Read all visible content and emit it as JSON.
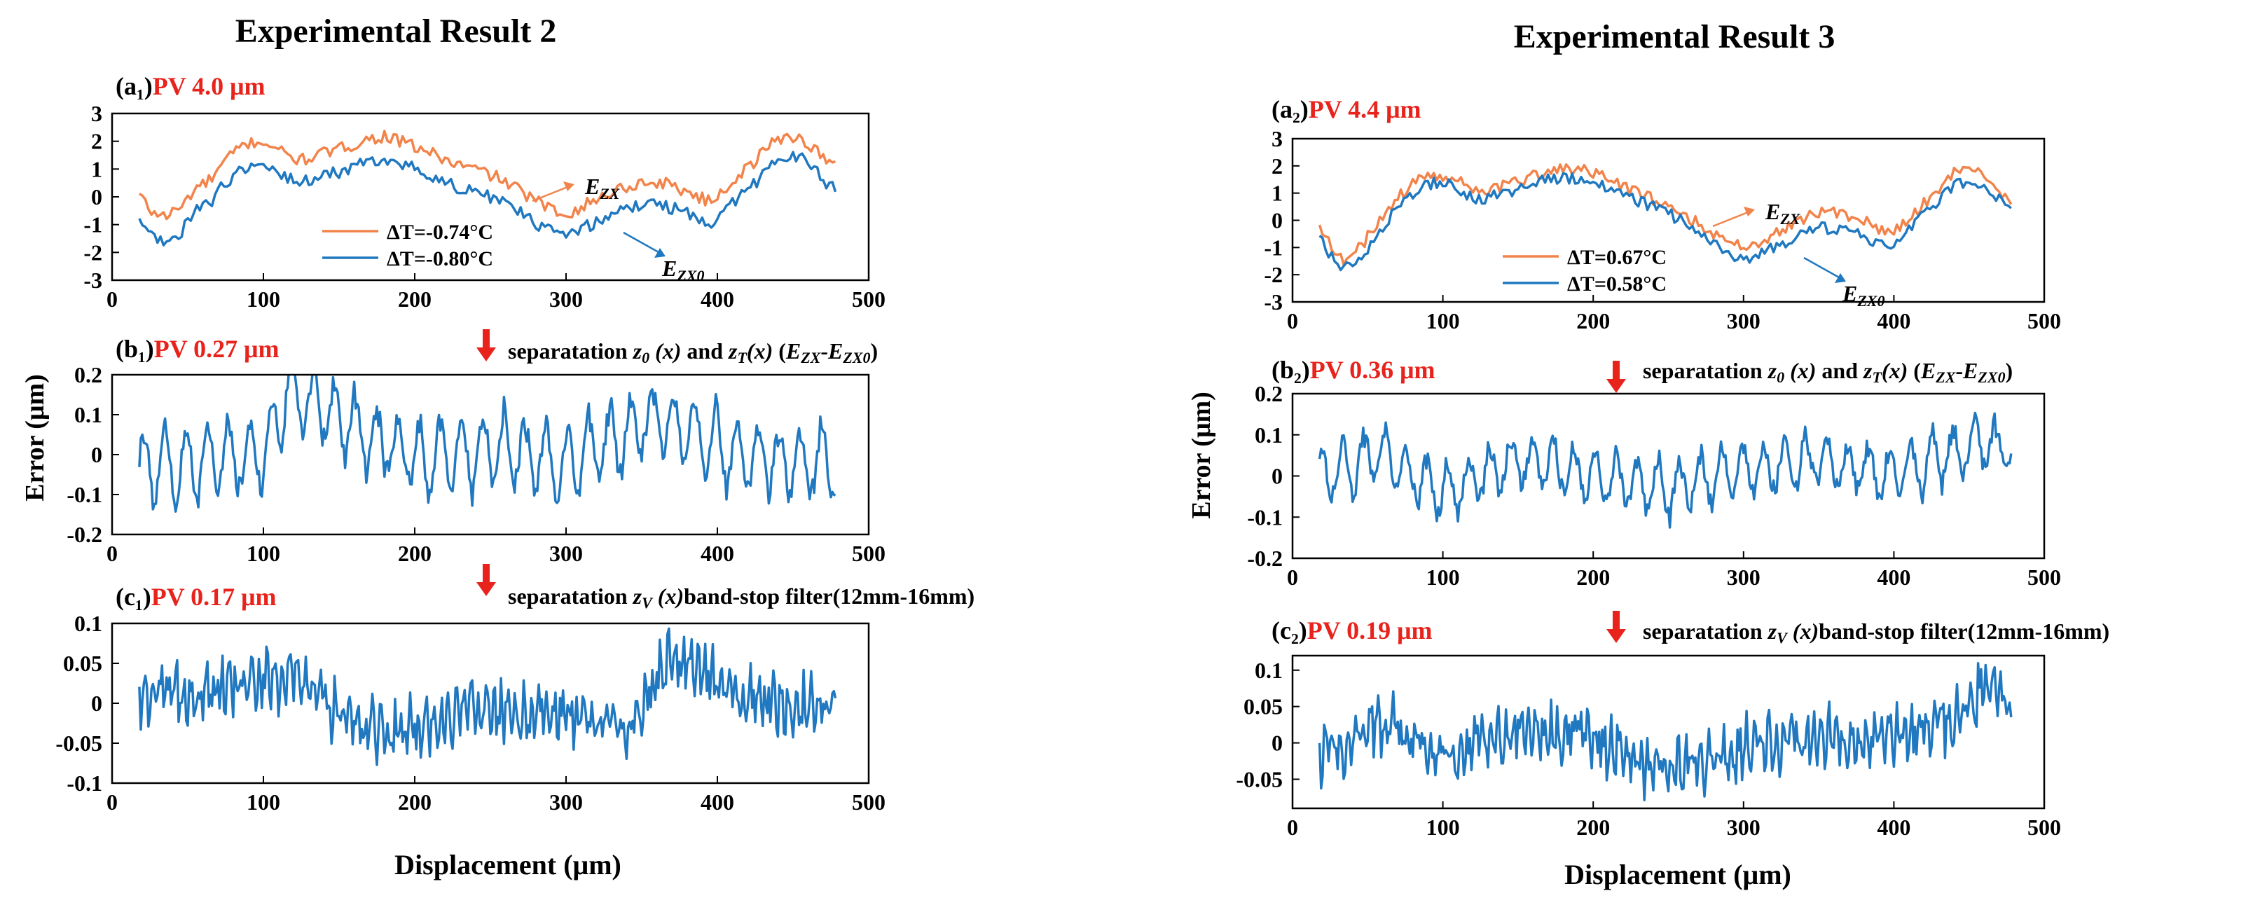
{
  "colors": {
    "orange": "#F2844B",
    "blue": "#1F78C0",
    "red": "#E8231C",
    "black": "#000000"
  },
  "labels": {
    "title_left": "Experimental Result 2",
    "title_right": "Experimental Result 3",
    "ylabel_error": "Error (μm)",
    "xlabel": "Displacement (μm)",
    "sep1_text": "separatation z₀ (x) and z_T(x) (E_ZX-E_ZX0)",
    "sep2_text": "separatation z_V (x)band-stop filter(12mm-16mm)"
  },
  "chart_data": [
    {
      "id": "a1",
      "type": "line",
      "panel_label": "(a₁)",
      "pv_text": "PV 4.0 μm",
      "xlim": [
        0,
        500
      ],
      "ylim": [
        -3,
        3
      ],
      "xticks": [
        0,
        100,
        200,
        300,
        400,
        500
      ],
      "yticks": [
        -3,
        -2,
        -1,
        0,
        1,
        2,
        3
      ],
      "x_range": [
        18,
        478
      ],
      "annotations": [
        "E_ZX",
        "E_ZX0"
      ],
      "series": [
        {
          "name": "ΔT=-0.74°C",
          "label": "E_ZX",
          "color": "orange",
          "points": [
            [
              18,
              0.1
            ],
            [
              25,
              -0.5
            ],
            [
              35,
              -0.7
            ],
            [
              45,
              -0.4
            ],
            [
              55,
              0.3
            ],
            [
              65,
              0.6
            ],
            [
              75,
              1.3
            ],
            [
              85,
              1.8
            ],
            [
              95,
              2.0
            ],
            [
              105,
              1.9
            ],
            [
              115,
              1.5
            ],
            [
              125,
              1.3
            ],
            [
              135,
              1.5
            ],
            [
              150,
              1.7
            ],
            [
              165,
              2.0
            ],
            [
              180,
              2.2
            ],
            [
              195,
              1.9
            ],
            [
              210,
              1.6
            ],
            [
              225,
              1.2
            ],
            [
              240,
              1.0
            ],
            [
              255,
              0.7
            ],
            [
              270,
              0.2
            ],
            [
              285,
              -0.3
            ],
            [
              295,
              -0.6
            ],
            [
              305,
              -0.5
            ],
            [
              320,
              -0.1
            ],
            [
              335,
              0.3
            ],
            [
              350,
              0.5
            ],
            [
              365,
              0.5
            ],
            [
              380,
              0.2
            ],
            [
              395,
              -0.2
            ],
            [
              405,
              0.3
            ],
            [
              415,
              0.8
            ],
            [
              425,
              1.3
            ],
            [
              435,
              1.9
            ],
            [
              445,
              2.2
            ],
            [
              455,
              2.1
            ],
            [
              465,
              1.7
            ],
            [
              472,
              1.3
            ],
            [
              478,
              1.1
            ]
          ]
        },
        {
          "name": "ΔT=-0.80°C",
          "label": "E_ZX0",
          "color": "blue",
          "points": [
            [
              18,
              -0.8
            ],
            [
              25,
              -1.4
            ],
            [
              35,
              -1.7
            ],
            [
              45,
              -1.3
            ],
            [
              55,
              -0.5
            ],
            [
              65,
              -0.2
            ],
            [
              75,
              0.5
            ],
            [
              85,
              1.0
            ],
            [
              95,
              1.2
            ],
            [
              105,
              1.1
            ],
            [
              115,
              0.7
            ],
            [
              125,
              0.5
            ],
            [
              135,
              0.7
            ],
            [
              150,
              0.9
            ],
            [
              165,
              1.2
            ],
            [
              180,
              1.4
            ],
            [
              195,
              1.1
            ],
            [
              210,
              0.8
            ],
            [
              225,
              0.4
            ],
            [
              240,
              0.2
            ],
            [
              255,
              -0.1
            ],
            [
              270,
              -0.6
            ],
            [
              285,
              -1.1
            ],
            [
              295,
              -1.4
            ],
            [
              305,
              -1.3
            ],
            [
              320,
              -0.9
            ],
            [
              335,
              -0.5
            ],
            [
              350,
              -0.3
            ],
            [
              365,
              -0.3
            ],
            [
              380,
              -0.6
            ],
            [
              395,
              -1.0
            ],
            [
              405,
              -0.5
            ],
            [
              415,
              0.0
            ],
            [
              425,
              0.5
            ],
            [
              435,
              1.1
            ],
            [
              445,
              1.5
            ],
            [
              455,
              1.4
            ],
            [
              465,
              1.0
            ],
            [
              472,
              0.5
            ],
            [
              478,
              0.3
            ]
          ]
        }
      ]
    },
    {
      "id": "b1",
      "type": "line",
      "panel_label": "(b₁)",
      "pv_text": "PV 0.27 μm",
      "xlim": [
        0,
        500
      ],
      "ylim": [
        -0.2,
        0.2
      ],
      "xticks": [
        0,
        100,
        200,
        300,
        400,
        500
      ],
      "yticks": [
        -0.2,
        -0.1,
        0,
        0.1,
        0.2
      ],
      "x_range": [
        18,
        478
      ],
      "series": [
        {
          "name": "z_T(x)",
          "color": "blue",
          "amplitude": 0.085,
          "period": 14,
          "noise": 0.02,
          "points": [
            [
              18,
              -0.03
            ],
            [
              100,
              0.0
            ],
            [
              116,
              0.16
            ],
            [
              200,
              -0.02
            ],
            [
              250,
              0.02
            ],
            [
              300,
              -0.02
            ],
            [
              360,
              0.1
            ],
            [
              410,
              0.0
            ],
            [
              478,
              -0.03
            ]
          ]
        }
      ]
    },
    {
      "id": "c1",
      "type": "line",
      "panel_label": "(c₁)",
      "pv_text": "PV 0.17 μm",
      "xlim": [
        0,
        500
      ],
      "ylim": [
        -0.1,
        0.1
      ],
      "xticks": [
        0,
        100,
        200,
        300,
        400,
        500
      ],
      "yticks": [
        -0.1,
        -0.05,
        0,
        0.05,
        0.1
      ],
      "x_range": [
        18,
        478
      ],
      "series": [
        {
          "name": "z_V(x)",
          "color": "blue",
          "amplitude": 0.02,
          "period": 5,
          "noise": 0.028,
          "points": [
            [
              18,
              0.0
            ],
            [
              60,
              0.02
            ],
            [
              120,
              0.03
            ],
            [
              180,
              -0.04
            ],
            [
              240,
              -0.01
            ],
            [
              300,
              -0.01
            ],
            [
              340,
              -0.03
            ],
            [
              370,
              0.06
            ],
            [
              420,
              0.0
            ],
            [
              478,
              0.0
            ]
          ]
        }
      ]
    },
    {
      "id": "a2",
      "type": "line",
      "panel_label": "(a₂)",
      "pv_text": "PV 4.4 μm",
      "xlim": [
        0,
        500
      ],
      "ylim": [
        -3,
        3
      ],
      "xticks": [
        0,
        100,
        200,
        300,
        400,
        500
      ],
      "yticks": [
        -3,
        -2,
        -1,
        0,
        1,
        2,
        3
      ],
      "x_range": [
        18,
        478
      ],
      "annotations": [
        "E_ZX",
        "E_ZX0"
      ],
      "series": [
        {
          "name": "ΔT=0.67°C",
          "label": "E_ZX",
          "color": "orange",
          "points": [
            [
              18,
              -0.2
            ],
            [
              25,
              -0.9
            ],
            [
              35,
              -1.5
            ],
            [
              45,
              -1.0
            ],
            [
              55,
              -0.2
            ],
            [
              65,
              0.5
            ],
            [
              75,
              1.1
            ],
            [
              85,
              1.5
            ],
            [
              95,
              1.7
            ],
            [
              105,
              1.6
            ],
            [
              115,
              1.3
            ],
            [
              125,
              1.0
            ],
            [
              135,
              1.2
            ],
            [
              150,
              1.4
            ],
            [
              165,
              1.7
            ],
            [
              180,
              1.9
            ],
            [
              195,
              1.8
            ],
            [
              210,
              1.5
            ],
            [
              225,
              1.1
            ],
            [
              240,
              0.8
            ],
            [
              255,
              0.4
            ],
            [
              270,
              -0.1
            ],
            [
              285,
              -0.6
            ],
            [
              295,
              -0.9
            ],
            [
              305,
              -0.9
            ],
            [
              320,
              -0.5
            ],
            [
              335,
              0.0
            ],
            [
              350,
              0.3
            ],
            [
              365,
              0.3
            ],
            [
              380,
              0.0
            ],
            [
              395,
              -0.4
            ],
            [
              405,
              -0.2
            ],
            [
              415,
              0.3
            ],
            [
              425,
              0.9
            ],
            [
              435,
              1.5
            ],
            [
              445,
              1.9
            ],
            [
              455,
              1.8
            ],
            [
              465,
              1.5
            ],
            [
              472,
              1.0
            ],
            [
              478,
              0.7
            ]
          ]
        },
        {
          "name": "ΔT=0.58°C",
          "label": "E_ZX0",
          "color": "blue",
          "points": [
            [
              18,
              -0.6
            ],
            [
              25,
              -1.3
            ],
            [
              35,
              -1.8
            ],
            [
              45,
              -1.4
            ],
            [
              55,
              -0.6
            ],
            [
              65,
              0.1
            ],
            [
              75,
              0.8
            ],
            [
              85,
              1.2
            ],
            [
              95,
              1.4
            ],
            [
              105,
              1.3
            ],
            [
              115,
              1.0
            ],
            [
              125,
              0.7
            ],
            [
              135,
              0.9
            ],
            [
              150,
              1.1
            ],
            [
              165,
              1.4
            ],
            [
              180,
              1.6
            ],
            [
              195,
              1.5
            ],
            [
              210,
              1.2
            ],
            [
              225,
              0.8
            ],
            [
              240,
              0.5
            ],
            [
              255,
              0.1
            ],
            [
              270,
              -0.4
            ],
            [
              285,
              -1.0
            ],
            [
              295,
              -1.3
            ],
            [
              305,
              -1.4
            ],
            [
              320,
              -1.0
            ],
            [
              335,
              -0.6
            ],
            [
              350,
              -0.3
            ],
            [
              365,
              -0.3
            ],
            [
              380,
              -0.6
            ],
            [
              395,
              -1.0
            ],
            [
              405,
              -0.7
            ],
            [
              415,
              -0.1
            ],
            [
              425,
              0.5
            ],
            [
              435,
              1.1
            ],
            [
              445,
              1.4
            ],
            [
              455,
              1.4
            ],
            [
              465,
              1.1
            ],
            [
              472,
              0.6
            ],
            [
              478,
              0.4
            ]
          ]
        }
      ]
    },
    {
      "id": "b2",
      "type": "line",
      "panel_label": "(b₂)",
      "pv_text": "PV 0.36 μm",
      "xlim": [
        0,
        500
      ],
      "ylim": [
        -0.2,
        0.2
      ],
      "xticks": [
        0,
        100,
        200,
        300,
        400,
        500
      ],
      "yticks": [
        -0.2,
        -0.1,
        0,
        0.1,
        0.2
      ],
      "x_range": [
        18,
        478
      ],
      "series": [
        {
          "name": "z_T(x)",
          "color": "blue",
          "amplitude": 0.06,
          "period": 14,
          "noise": 0.02,
          "points": [
            [
              18,
              0.0
            ],
            [
              60,
              0.05
            ],
            [
              100,
              -0.04
            ],
            [
              150,
              0.04
            ],
            [
              200,
              0.0
            ],
            [
              250,
              -0.03
            ],
            [
              300,
              0.02
            ],
            [
              350,
              0.04
            ],
            [
              400,
              0.0
            ],
            [
              460,
              0.08
            ],
            [
              478,
              0.06
            ]
          ]
        }
      ]
    },
    {
      "id": "c2",
      "type": "line",
      "panel_label": "(c₂)",
      "pv_text": "PV 0.19 μm",
      "xlim": [
        0,
        500
      ],
      "ylim": [
        -0.09,
        0.12
      ],
      "xticks": [
        0,
        100,
        200,
        300,
        400,
        500
      ],
      "yticks": [
        -0.05,
        0,
        0.05,
        0.1
      ],
      "x_range": [
        18,
        478
      ],
      "series": [
        {
          "name": "z_V(x)",
          "color": "blue",
          "amplitude": 0.02,
          "period": 5,
          "noise": 0.03,
          "points": [
            [
              18,
              -0.02
            ],
            [
              60,
              0.03
            ],
            [
              100,
              -0.02
            ],
            [
              150,
              0.02
            ],
            [
              200,
              0.01
            ],
            [
              240,
              -0.04
            ],
            [
              280,
              -0.02
            ],
            [
              330,
              0.01
            ],
            [
              380,
              0.0
            ],
            [
              440,
              0.03
            ],
            [
              460,
              0.08
            ],
            [
              478,
              0.05
            ]
          ]
        }
      ]
    }
  ]
}
